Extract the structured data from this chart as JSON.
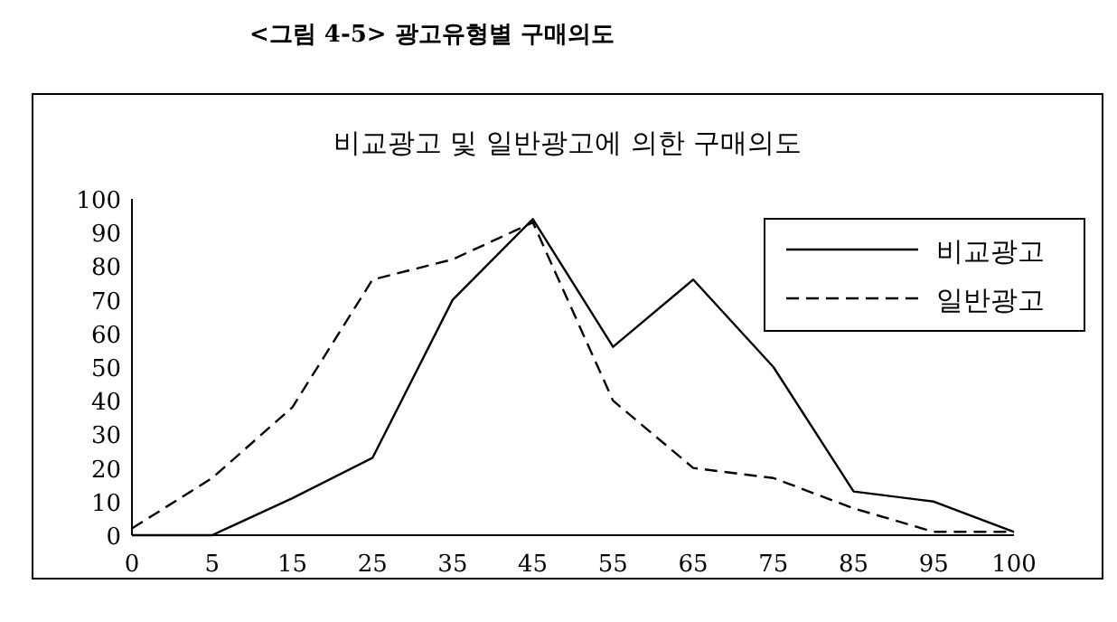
{
  "chart_data": {
    "type": "line",
    "title": "<그림 4-5> 광고유형별 구매의도",
    "subtitle": "비교광고 및 일반광고에 의한 구매의도",
    "categories": [
      "0",
      "5",
      "15",
      "25",
      "35",
      "45",
      "55",
      "65",
      "75",
      "85",
      "95",
      "100"
    ],
    "series": [
      {
        "name": "비교광고",
        "color": "#000000",
        "line_style": "solid",
        "values": [
          0,
          0,
          11,
          23,
          70,
          94,
          56,
          76,
          50,
          13,
          10,
          1
        ]
      },
      {
        "name": "일반광고",
        "color": "#000000",
        "line_style": "dashed",
        "values": [
          2,
          17,
          38,
          76,
          82,
          93,
          40,
          20,
          17,
          8,
          1,
          1
        ]
      }
    ],
    "ylim": [
      0,
      100
    ],
    "yticks": [
      0,
      10,
      20,
      30,
      40,
      50,
      60,
      70,
      80,
      90,
      100
    ],
    "grid": false,
    "legend": "top right"
  }
}
